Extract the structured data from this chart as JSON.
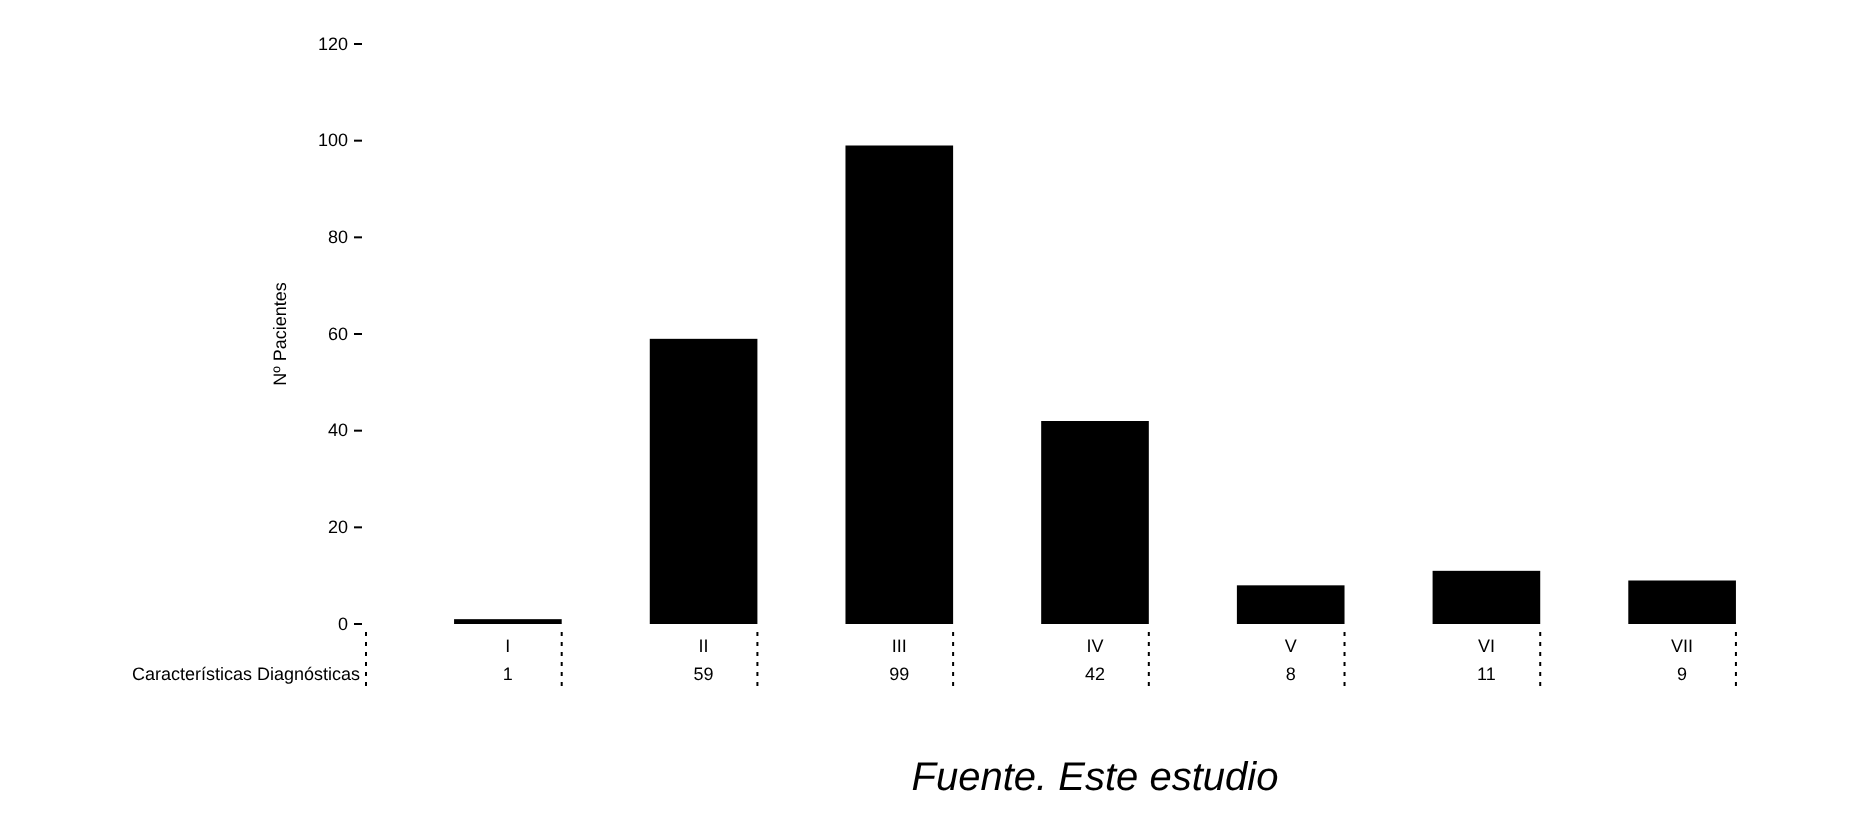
{
  "chart_data": {
    "type": "bar",
    "ylabel": "Nº Pacientes",
    "xlabel": "Características Diagnósticas",
    "categories": [
      "I",
      "II",
      "III",
      "IV",
      "V",
      "VI",
      "VII"
    ],
    "values": [
      1,
      59,
      99,
      42,
      8,
      11,
      9
    ],
    "color": "#000000",
    "ylim": [
      0,
      120
    ],
    "yticks": [
      0,
      20,
      40,
      60,
      80,
      100,
      120
    ],
    "data_labels": true,
    "annotations": [
      "Fuente. Este estudio"
    ]
  }
}
